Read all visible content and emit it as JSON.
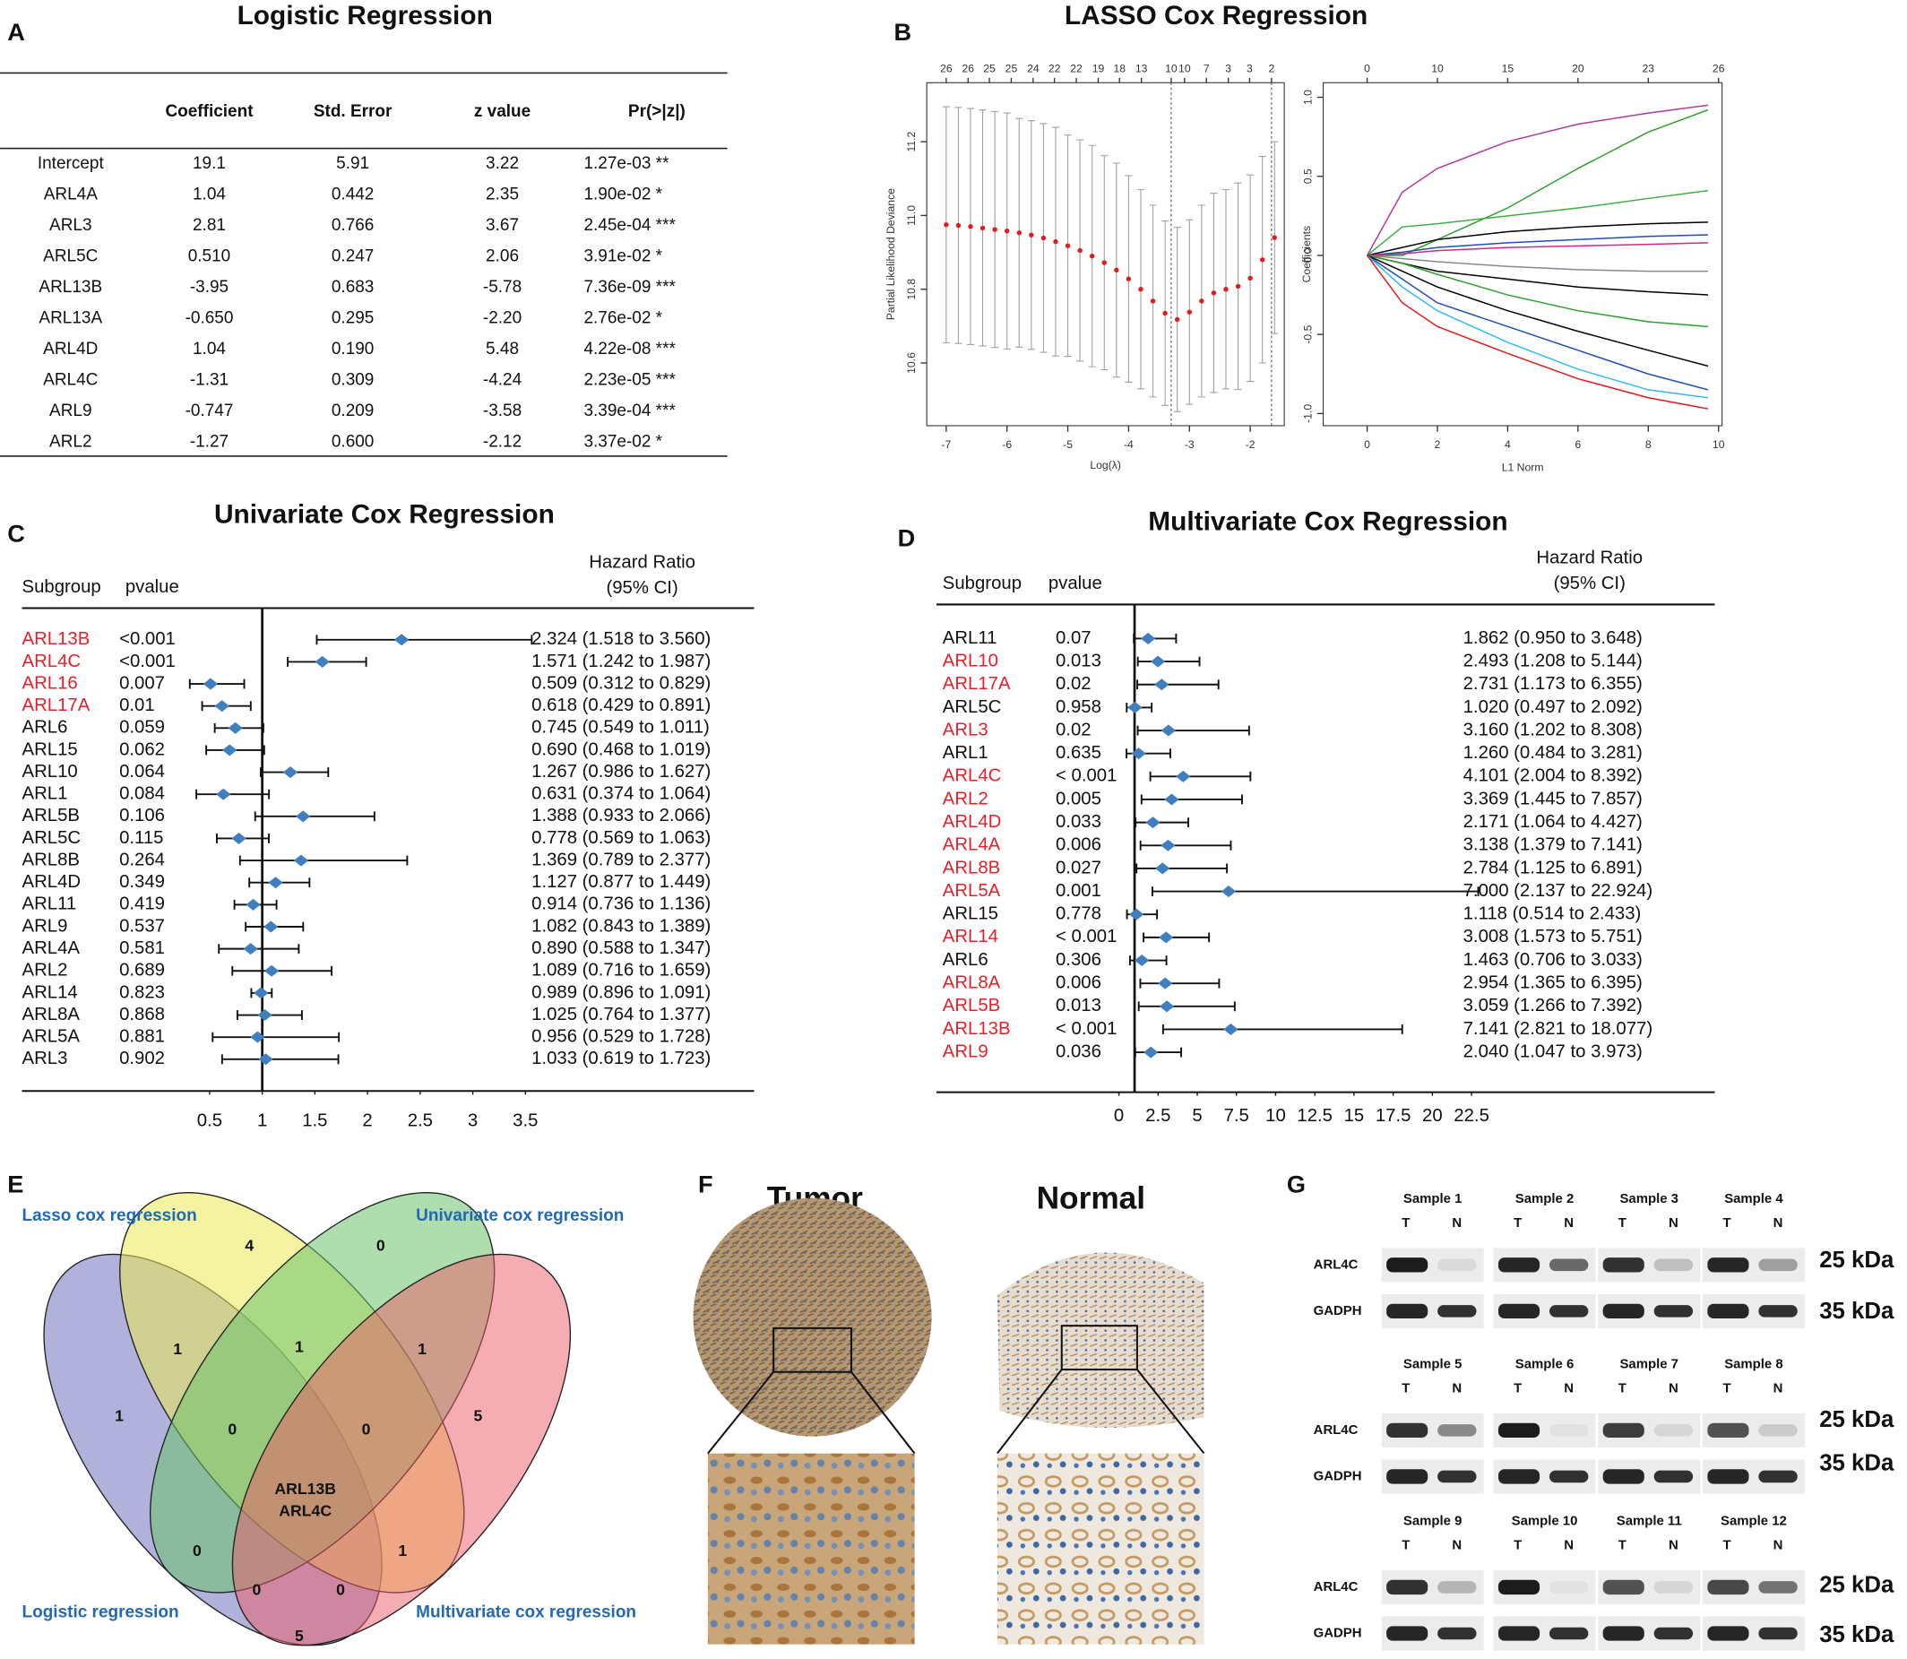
{
  "panels": [
    "A",
    "B",
    "C",
    "D",
    "E",
    "F",
    "G"
  ],
  "table": {
    "title": "Logistic Regression",
    "header": [
      "Coefficient",
      "Std. Error",
      "z value",
      "Pr(>|z|)"
    ],
    "rows": [
      [
        "Intercept",
        "19.1",
        "5.91",
        "3.22",
        "1.27e-03 **"
      ],
      [
        "ARL4A",
        "1.04",
        "0.442",
        "2.35",
        "1.90e-02 *"
      ],
      [
        "ARL3",
        "2.81",
        "0.766",
        "3.67",
        "2.45e-04 ***"
      ],
      [
        "ARL5C",
        "0.510",
        "0.247",
        "2.06",
        "3.91e-02 *"
      ],
      [
        "ARL13B",
        "-3.95",
        "0.683",
        "-5.78",
        "7.36e-09 ***"
      ],
      [
        "ARL13A",
        "-0.650",
        "0.295",
        "-2.20",
        "2.76e-02 *"
      ],
      [
        "ARL4D",
        "1.04",
        "0.190",
        "5.48",
        "4.22e-08 ***"
      ],
      [
        "ARL4C",
        "-1.31",
        "0.309",
        "-4.24",
        "2.23e-05 ***"
      ],
      [
        "ARL9",
        "-0.747",
        "0.209",
        "-3.58",
        "3.39e-04 ***"
      ],
      [
        "ARL2",
        "-1.27",
        "0.600",
        "-2.12",
        "3.37e-02 *"
      ]
    ]
  },
  "chart_data": [
    {
      "type": "errorbar",
      "title": "LASSO Cox Regression",
      "xlabel": "Log(λ)",
      "ylabel": "Partial Likelihood Deviance",
      "x": [
        -7,
        -6.8,
        -6.6,
        -6.4,
        -6.2,
        -6,
        -5.8,
        -5.6,
        -5.4,
        -5.2,
        -5,
        -4.8,
        -4.6,
        -4.4,
        -4.2,
        -4,
        -3.8,
        -3.6,
        -3.4,
        -3.2,
        -3,
        -2.8,
        -2.6,
        -2.4,
        -2.2,
        -2,
        -1.8,
        -1.6
      ],
      "values": [
        10.975,
        10.973,
        10.97,
        10.966,
        10.962,
        10.958,
        10.953,
        10.947,
        10.939,
        10.929,
        10.918,
        10.905,
        10.89,
        10.872,
        10.852,
        10.828,
        10.8,
        10.768,
        10.735,
        10.718,
        10.738,
        10.768,
        10.79,
        10.8,
        10.808,
        10.83,
        10.88,
        10.94
      ],
      "errors": [
        0.32,
        0.32,
        0.32,
        0.32,
        0.32,
        0.32,
        0.31,
        0.31,
        0.31,
        0.31,
        0.3,
        0.3,
        0.3,
        0.29,
        0.29,
        0.28,
        0.27,
        0.26,
        0.25,
        0.25,
        0.25,
        0.26,
        0.27,
        0.27,
        0.28,
        0.28,
        0.28,
        0.26
      ],
      "color": "#e41a1c",
      "bar_color": "#a0a0a0",
      "vlines": [
        -3.3,
        -1.65
      ],
      "xlim": [
        -7.32,
        -1.44
      ],
      "ylim": [
        10.43,
        11.36
      ],
      "xticks": [
        -7,
        -6,
        -5,
        -4,
        -3,
        -2
      ],
      "yticks": [
        10.6,
        10.8,
        {
          "value": 11,
          "label": "11.0"
        },
        11.2
      ],
      "x2ticks": [
        {
          "value": -7,
          "label": "26"
        },
        {
          "value": -6.64,
          "label": "26"
        },
        {
          "value": -6.29,
          "label": "25"
        },
        {
          "value": -5.93,
          "label": "25"
        },
        {
          "value": -5.57,
          "label": "24"
        },
        {
          "value": -5.22,
          "label": "22"
        },
        {
          "value": -4.86,
          "label": "22"
        },
        {
          "value": -4.5,
          "label": "19"
        },
        {
          "value": -4.15,
          "label": "18"
        },
        {
          "value": -3.79,
          "label": "13"
        },
        {
          "value": -3.3,
          "label": "10"
        },
        {
          "value": -3.08,
          "label": "10"
        },
        {
          "value": -2.72,
          "label": "7"
        },
        {
          "value": -2.36,
          "label": "3"
        },
        {
          "value": -2.01,
          "label": "3"
        },
        {
          "value": -1.65,
          "label": "2"
        }
      ]
    },
    {
      "type": "line",
      "xlabel": "L1 Norm",
      "ylabel": "Coefficients",
      "x": [
        0,
        1,
        2,
        4,
        6,
        8,
        9.7
      ],
      "series": [
        {
          "color": "#b03aa0",
          "values": [
            0,
            0.4,
            0.55,
            0.72,
            0.83,
            0.9,
            0.95
          ]
        },
        {
          "color": "#2ca02c",
          "values": [
            0,
            0.0,
            0.1,
            0.3,
            0.55,
            0.78,
            0.92
          ]
        },
        {
          "color": "#3cb043",
          "values": [
            0,
            0.18,
            0.2,
            0.25,
            0.3,
            0.36,
            0.41
          ]
        },
        {
          "color": "#000000",
          "values": [
            0,
            0.05,
            0.1,
            0.15,
            0.18,
            0.2,
            0.21
          ]
        },
        {
          "color": "#1f4fb4",
          "values": [
            0,
            0.02,
            0.05,
            0.08,
            0.1,
            0.12,
            0.13
          ]
        },
        {
          "color": "#d62788",
          "values": [
            0,
            0.01,
            0.03,
            0.05,
            0.06,
            0.07,
            0.08
          ]
        },
        {
          "color": "#888888",
          "values": [
            0,
            -0.02,
            -0.04,
            -0.07,
            -0.09,
            -0.1,
            -0.1
          ]
        },
        {
          "color": "#000000",
          "values": [
            0,
            -0.05,
            -0.1,
            -0.15,
            -0.2,
            -0.23,
            -0.25
          ]
        },
        {
          "color": "#2ca02c",
          "values": [
            0,
            -0.05,
            -0.12,
            -0.25,
            -0.35,
            -0.42,
            -0.45
          ]
        },
        {
          "color": "#000000",
          "values": [
            0,
            -0.1,
            -0.2,
            -0.35,
            -0.48,
            -0.6,
            -0.7
          ]
        },
        {
          "color": "#1f4fb4",
          "values": [
            0,
            -0.15,
            -0.3,
            -0.45,
            -0.6,
            -0.75,
            -0.85
          ]
        },
        {
          "color": "#33bbee",
          "values": [
            0,
            -0.2,
            -0.35,
            -0.55,
            -0.72,
            -0.85,
            -0.9
          ]
        },
        {
          "color": "#e41a1c",
          "values": [
            0,
            -0.3,
            -0.45,
            -0.62,
            -0.78,
            -0.9,
            -0.97
          ]
        }
      ],
      "xlim": [
        -1.25,
        10.1
      ],
      "ylim": [
        -1.077,
        1.092
      ],
      "xticks": [
        0,
        2,
        4,
        6,
        8,
        10
      ],
      "yticks": [
        {
          "value": -1,
          "label": "-1.0"
        },
        -0.5,
        {
          "value": 0,
          "label": "0.0"
        },
        0.5,
        {
          "value": 1,
          "label": "1.0"
        }
      ],
      "x2ticks": [
        {
          "value": 0,
          "label": "0"
        },
        {
          "value": 2,
          "label": "10"
        },
        {
          "value": 4,
          "label": "15"
        },
        {
          "value": 6,
          "label": "20"
        },
        {
          "value": 8,
          "label": "23"
        },
        {
          "value": 10,
          "label": "26"
        }
      ]
    },
    {
      "type": "forest",
      "title": "Univariate Cox Regression",
      "columns": [
        "Subgroup",
        "pvalue"
      ],
      "hr_header": [
        "Hazard Ratio",
        "(95% CI)"
      ],
      "categories": [
        "ARL13B",
        "ARL4C",
        "ARL16",
        "ARL17A",
        "ARL6",
        "ARL15",
        "ARL10",
        "ARL1",
        "ARL5B",
        "ARL5C",
        "ARL8B",
        "ARL4D",
        "ARL11",
        "ARL9",
        "ARL4A",
        "ARL2",
        "ARL14",
        "ARL8A",
        "ARL5A",
        "ARL3"
      ],
      "pvalues": [
        "<0.001",
        "<0.001",
        "0.007",
        "0.01",
        "0.059",
        "0.062",
        "0.064",
        "0.084",
        "0.106",
        "0.115",
        "0.264",
        "0.349",
        "0.419",
        "0.537",
        "0.581",
        "0.689",
        "0.823",
        "0.868",
        "0.881",
        "0.902"
      ],
      "values": [
        2.324,
        1.571,
        0.509,
        0.618,
        0.745,
        0.69,
        1.267,
        0.631,
        1.388,
        0.778,
        1.369,
        1.127,
        0.914,
        1.082,
        0.89,
        1.089,
        0.989,
        1.025,
        0.956,
        1.033
      ],
      "lower": [
        1.518,
        1.242,
        0.312,
        0.429,
        0.549,
        0.468,
        0.986,
        0.374,
        0.933,
        0.569,
        0.789,
        0.877,
        0.736,
        0.843,
        0.588,
        0.716,
        0.896,
        0.764,
        0.529,
        0.619
      ],
      "upper": [
        3.56,
        1.987,
        0.829,
        0.891,
        1.011,
        1.019,
        1.627,
        1.064,
        2.066,
        1.063,
        2.377,
        1.449,
        1.136,
        1.389,
        1.347,
        1.659,
        1.091,
        1.377,
        1.728,
        1.723
      ],
      "value_labels": [
        "2.324 (1.518 to 3.560)",
        "1.571 (1.242 to 1.987)",
        "0.509 (0.312 to 0.829)",
        "0.618 (0.429 to 0.891)",
        "0.745 (0.549 to 1.011)",
        "0.690 (0.468 to 1.019)",
        "1.267 (0.986 to 1.627)",
        "0.631 (0.374 to 1.064)",
        "1.388 (0.933 to 2.066)",
        "0.778 (0.569 to 1.063)",
        "1.369 (0.789 to 2.377)",
        "1.127 (0.877 to 1.449)",
        "0.914 (0.736 to 1.136)",
        "1.082 (0.843 to 1.389)",
        "0.890 (0.588 to 1.347)",
        "1.089 (0.716 to 1.659)",
        "0.989 (0.896 to 1.091)",
        "1.025 (0.764 to 1.377)",
        "0.956 (0.529 to 1.728)",
        "1.033 (0.619 to 1.723)"
      ],
      "label_colors": [
        "#e8202a",
        "#e8202a",
        "#e8202a",
        "#e8202a",
        "#111111",
        "#111111",
        "#111111",
        "#111111",
        "#111111",
        "#111111",
        "#111111",
        "#111111",
        "#111111",
        "#111111",
        "#111111",
        "#111111",
        "#111111",
        "#111111",
        "#111111",
        "#111111"
      ],
      "color": "#3f7fbf",
      "reference": 1,
      "xlim": [
        0,
        3.5
      ],
      "xticks": [
        0.5,
        1,
        1.5,
        2,
        2.5,
        3,
        3.5
      ]
    },
    {
      "type": "forest",
      "title": "Multivariate Cox Regression",
      "columns": [
        "Subgroup",
        "pvalue"
      ],
      "hr_header": [
        "Hazard Ratio",
        "(95% CI)"
      ],
      "categories": [
        "ARL11",
        "ARL10",
        "ARL17A",
        "ARL5C",
        "ARL3",
        "ARL1",
        "ARL4C",
        "ARL2",
        "ARL4D",
        "ARL4A",
        "ARL8B",
        "ARL5A",
        "ARL15",
        "ARL14",
        "ARL6",
        "ARL8A",
        "ARL5B",
        "ARL13B",
        "ARL9"
      ],
      "pvalues": [
        "0.07",
        "0.013",
        "0.02",
        "0.958",
        "0.02",
        "0.635",
        "< 0.001",
        "0.005",
        "0.033",
        "0.006",
        "0.027",
        "0.001",
        "0.778",
        "< 0.001",
        "0.306",
        "0.006",
        "0.013",
        "< 0.001",
        "0.036"
      ],
      "values": [
        1.862,
        2.493,
        2.731,
        1.02,
        3.16,
        1.26,
        4.101,
        3.369,
        2.171,
        3.138,
        2.784,
        7.0,
        1.118,
        3.008,
        1.463,
        2.954,
        3.059,
        7.141,
        2.04
      ],
      "lower": [
        0.95,
        1.208,
        1.173,
        0.497,
        1.202,
        0.484,
        2.004,
        1.445,
        1.064,
        1.379,
        1.125,
        2.137,
        0.514,
        1.573,
        0.706,
        1.365,
        1.266,
        2.821,
        1.047
      ],
      "upper": [
        3.648,
        5.144,
        6.355,
        2.092,
        8.308,
        3.281,
        8.392,
        7.857,
        4.427,
        7.141,
        6.891,
        22.924,
        2.433,
        5.751,
        3.033,
        6.395,
        7.392,
        18.077,
        3.973
      ],
      "value_labels": [
        "1.862 (0.950 to 3.648)",
        "2.493 (1.208 to 5.144)",
        "2.731 (1.173 to 6.355)",
        "1.020 (0.497 to 2.092)",
        "3.160 (1.202 to 8.308)",
        "1.260 (0.484 to 3.281)",
        "4.101 (2.004 to 8.392)",
        "3.369 (1.445 to 7.857)",
        "2.171 (1.064 to 4.427)",
        "3.138 (1.379 to 7.141)",
        "2.784 (1.125 to 6.891)",
        "7.000 (2.137 to 22.924)",
        "1.118 (0.514 to 2.433)",
        "3.008 (1.573 to 5.751)",
        "1.463 (0.706 to 3.033)",
        "2.954 (1.365 to 6.395)",
        "3.059 (1.266 to 7.392)",
        "7.141 (2.821 to 18.077)",
        "2.040 (1.047 to 3.973)"
      ],
      "label_colors": [
        "#111111",
        "#e8202a",
        "#e8202a",
        "#111111",
        "#e8202a",
        "#111111",
        "#e8202a",
        "#e8202a",
        "#e8202a",
        "#e8202a",
        "#e8202a",
        "#e8202a",
        "#111111",
        "#e8202a",
        "#111111",
        "#e8202a",
        "#e8202a",
        "#e8202a",
        "#e8202a"
      ],
      "color": "#3f7fbf",
      "reference": 1,
      "xlim": [
        0,
        22.5
      ],
      "xticks": [
        0,
        2.5,
        5,
        7.5,
        10,
        12.5,
        15,
        17.5,
        20,
        22.5
      ]
    }
  ],
  "venn": {
    "sets": [
      "Lasso cox regression",
      "Univariate cox regression",
      "Logistic regression",
      "Multivariate cox regression"
    ],
    "counts": [
      4,
      0,
      1,
      1,
      1,
      1,
      5,
      0,
      0,
      0,
      1,
      0,
      0,
      5
    ],
    "center": [
      "ARL13B",
      "ARL4C"
    ]
  },
  "ihc": {
    "labels": [
      "Tumor",
      "Normal"
    ]
  },
  "blot": {
    "samples": [
      "Sample 1",
      "Sample 2",
      "Sample 3",
      "Sample 4",
      "Sample 5",
      "Sample 6",
      "Sample 7",
      "Sample 8",
      "Sample 9",
      "Sample 10",
      "Sample 11",
      "Sample 12"
    ],
    "lanes": [
      "T",
      "N"
    ],
    "proteins": [
      "ARL4C",
      "GADPH"
    ],
    "sizes": [
      "25 kDa",
      "35 kDa"
    ]
  }
}
